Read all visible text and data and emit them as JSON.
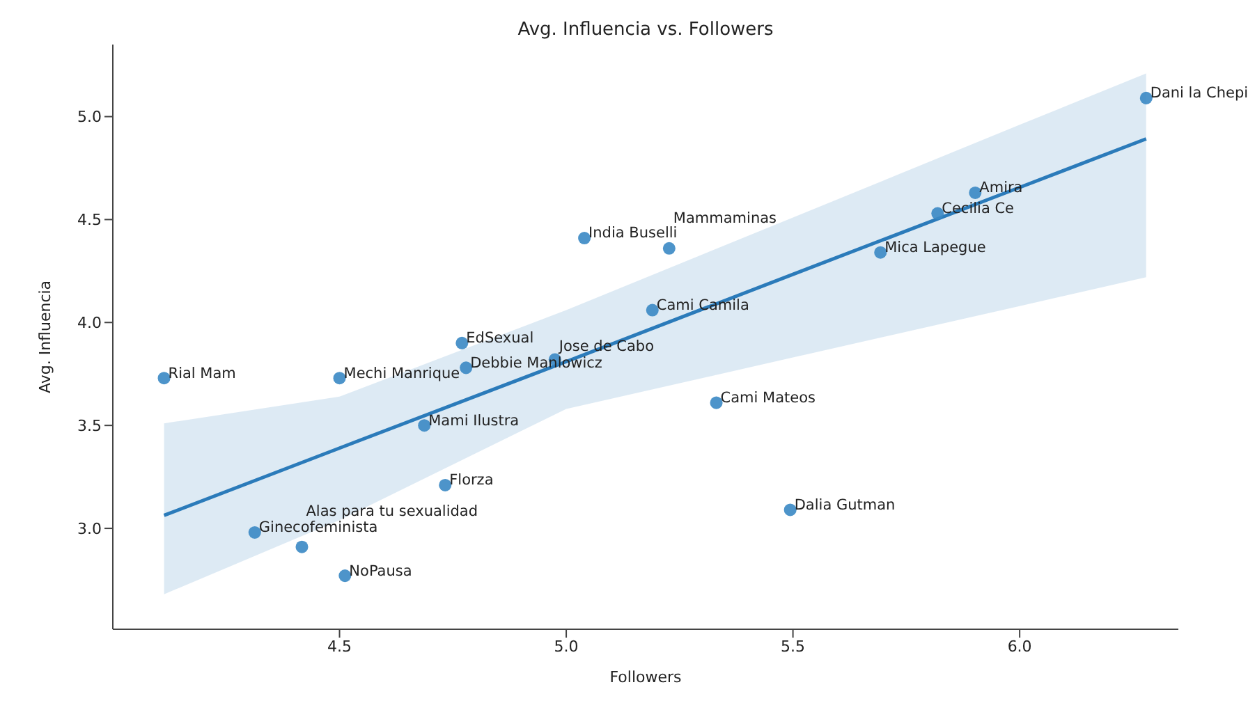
{
  "chart_data": {
    "type": "scatter",
    "title": "Avg. Influencia vs. Followers",
    "xlabel": "Followers",
    "ylabel": "Avg. Influencia",
    "xlim": [
      4.0,
      6.35
    ],
    "ylim": [
      2.51,
      5.35
    ],
    "xticks": [
      4.5,
      {
        "value": 5,
        "label": "5.0"
      },
      5.5,
      {
        "value": 6,
        "label": "6.0"
      }
    ],
    "yticks": [
      {
        "value": 3,
        "label": "3.0"
      },
      3.5,
      {
        "value": 4,
        "label": "4.0"
      },
      4.5,
      {
        "value": 5,
        "label": "5.0"
      }
    ],
    "grid": false,
    "legend": false,
    "series": [
      {
        "marker": "circle",
        "color": "#3a88c4",
        "x": [
          4.113,
          4.5,
          4.313,
          4.417,
          4.512,
          4.687,
          4.733,
          4.77,
          4.779,
          4.975,
          5.04,
          5.227,
          5.19,
          5.331,
          5.494,
          5.693,
          5.819,
          5.902,
          6.279
        ],
        "values": [
          3.73,
          3.73,
          2.98,
          2.91,
          2.77,
          3.5,
          3.21,
          3.9,
          3.78,
          3.82,
          4.41,
          4.36,
          4.06,
          3.61,
          3.09,
          4.34,
          4.53,
          4.63,
          5.09
        ]
      },
      {
        "type": "line",
        "color": "#2b7bba",
        "x": [
          4.113,
          4.5,
          5.0,
          5.5,
          6.0,
          6.279
        ],
        "values": [
          3.063,
          3.39,
          3.81,
          4.234,
          4.656,
          4.892
        ],
        "lower": [
          2.68,
          3.04,
          3.58,
          3.83,
          4.08,
          4.22
        ],
        "upper": [
          3.51,
          3.64,
          4.06,
          4.51,
          4.96,
          5.21
        ]
      }
    ],
    "annotations": [
      {
        "text": "Rial Mam",
        "x": 4.113,
        "y": 3.73
      },
      {
        "text": "Mechi Manrique",
        "x": 4.5,
        "y": 3.73
      },
      {
        "text": "Ginecofeminista",
        "x": 4.313,
        "y": 2.98
      },
      {
        "text": "Alas para tu sexualidad",
        "x": 4.417,
        "y": 2.91
      },
      {
        "text": "NoPausa",
        "x": 4.512,
        "y": 2.77
      },
      {
        "text": "Mami Ilustra",
        "x": 4.687,
        "y": 3.5
      },
      {
        "text": "Florza",
        "x": 4.733,
        "y": 3.21
      },
      {
        "text": "EdSexual",
        "x": 4.77,
        "y": 3.9
      },
      {
        "text": "Debbie Manlowicz",
        "x": 4.779,
        "y": 3.78
      },
      {
        "text": "Jose de Cabo",
        "x": 4.975,
        "y": 3.82
      },
      {
        "text": "India Buselli",
        "x": 5.04,
        "y": 4.41
      },
      {
        "text": "Mammaminas",
        "x": 5.227,
        "y": 4.36
      },
      {
        "text": "Cami Camila",
        "x": 5.19,
        "y": 4.06
      },
      {
        "text": "Cami Mateos",
        "x": 5.331,
        "y": 3.61
      },
      {
        "text": "Dalia Gutman",
        "x": 5.494,
        "y": 3.09
      },
      {
        "text": "Mica Lapegue",
        "x": 5.693,
        "y": 4.34
      },
      {
        "text": "Cecilia Ce",
        "x": 5.819,
        "y": 4.53
      },
      {
        "text": "Amira",
        "x": 5.902,
        "y": 4.63
      },
      {
        "text": "Dani la Chepi",
        "x": 6.279,
        "y": 5.09
      }
    ]
  }
}
